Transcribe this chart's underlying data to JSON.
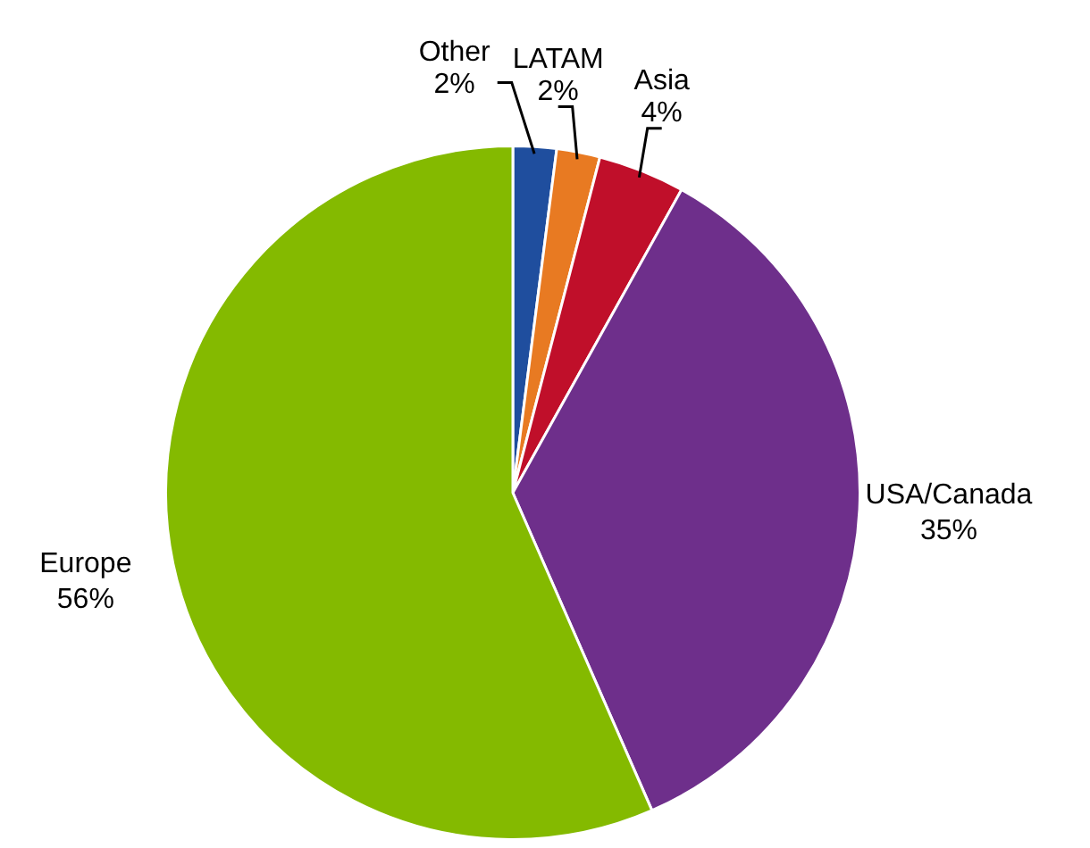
{
  "chart_data": {
    "type": "pie",
    "categories": [
      "Other",
      "LATAM",
      "Asia",
      "USA/Canada",
      "Europe"
    ],
    "values": [
      2,
      2,
      4,
      35,
      56
    ],
    "value_labels": [
      "2%",
      "2%",
      "4%",
      "35%",
      "56%"
    ],
    "colors": [
      "#1f4e9e",
      "#e87a22",
      "#c00f2a",
      "#6e2f8b",
      "#84ba00"
    ],
    "legend": false
  }
}
